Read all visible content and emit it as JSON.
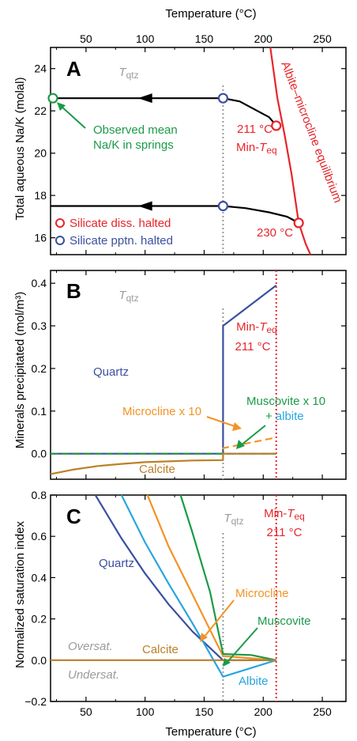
{
  "colors": {
    "black": "#000000",
    "red": "#e8252b",
    "blue": "#3a4fa0",
    "green": "#1a9a48",
    "orange": "#f39325",
    "cyan": "#29a6df",
    "brown": "#bd8027",
    "gray": "#9b9b9b"
  },
  "chart_data": [
    {
      "panel": "A",
      "type": "line",
      "xlabel": "Temperature (°C)",
      "x_axis_position": "top",
      "ylabel": "Total aqueous Na/K (molal)",
      "xlim": [
        20,
        270
      ],
      "ylim": [
        15.2,
        25
      ],
      "xticks": [
        50,
        100,
        150,
        200,
        250
      ],
      "yticks": [
        16,
        18,
        20,
        22,
        24
      ],
      "tqtz_x": 166,
      "tqtz_label": "T",
      "tqtz_sub": "qtz",
      "series": [
        {
          "name": "Albite–microcline equilibrium",
          "color": "red",
          "x": [
            206,
            212,
            218,
            224,
            230,
            236,
            240
          ],
          "y": [
            25,
            22.6,
            20.9,
            19.0,
            16.7,
            15.7,
            15.2
          ]
        },
        {
          "color": "black",
          "x": [
            21,
            166,
            180,
            195,
            205,
            211
          ],
          "y": [
            22.6,
            22.6,
            22.45,
            22.0,
            21.7,
            21.3
          ]
        },
        {
          "color": "black",
          "x": [
            20,
            166,
            185,
            205,
            220,
            230
          ],
          "y": [
            17.5,
            17.5,
            17.4,
            17.2,
            17.0,
            16.7
          ]
        }
      ],
      "markers": [
        {
          "x": 22,
          "y": 22.6,
          "color": "green"
        },
        {
          "x": 166,
          "y": 22.6,
          "color": "blue"
        },
        {
          "x": 211,
          "y": 21.3,
          "color": "red"
        },
        {
          "x": 166,
          "y": 17.5,
          "color": "blue"
        },
        {
          "x": 230,
          "y": 16.7,
          "color": "red"
        }
      ],
      "labels": {
        "letter": "A",
        "equilibrium": "Albite–microcline equilibrium",
        "observed_line1": "Observed mean",
        "observed_line2": "Na/K in springs",
        "t211": "211 °C",
        "min_teq_prefix": "Min-",
        "min_teq_t": "T",
        "min_teq_sub": "eq",
        "t230": "230 °C",
        "legend_red": "Silicate diss. halted",
        "legend_blue": "Silicate pptn. halted"
      }
    },
    {
      "panel": "B",
      "type": "line",
      "ylabel": "Minerals precipitated (mol/m³)",
      "xlim": [
        20,
        270
      ],
      "ylim": [
        -0.06,
        0.43
      ],
      "yticks": [
        0.0,
        0.1,
        0.2,
        0.3,
        0.4
      ],
      "ytick_labels": [
        "0.0",
        "0.1",
        "0.2",
        "0.3",
        "0.4"
      ],
      "tqtz_x": 166,
      "min_teq_x": 211,
      "series": [
        {
          "name": "Quartz",
          "color": "blue",
          "x": [
            20,
            166,
            166,
            211
          ],
          "y": [
            0,
            0,
            0.3,
            0.395
          ]
        },
        {
          "name": "Microcline x 10",
          "color": "orange",
          "x": [
            20,
            166,
            166,
            211
          ],
          "y": [
            0,
            0,
            0.013,
            0.038
          ],
          "dashed": true
        },
        {
          "name": "Muscovite x 10",
          "color": "green",
          "x": [
            20,
            166,
            211
          ],
          "y": [
            0,
            0,
            0
          ],
          "dashed": true
        },
        {
          "name": "albite",
          "color": "cyan",
          "x": [
            166,
            211
          ],
          "y": [
            0,
            0
          ]
        },
        {
          "name": "Calcite",
          "color": "brown",
          "x": [
            20,
            40,
            60,
            80,
            100,
            120,
            140,
            166,
            166,
            211
          ],
          "y": [
            -0.048,
            -0.037,
            -0.029,
            -0.024,
            -0.02,
            -0.018,
            -0.016,
            -0.015,
            0,
            0
          ]
        }
      ],
      "labels": {
        "letter": "B",
        "tqtz": "T",
        "tqtz_sub": "qtz",
        "min_teq_prefix": "Min-",
        "min_teq_t": "T",
        "min_teq_sub": "eq",
        "t211": "211 °C",
        "quartz": "Quartz",
        "microcline": "Microcline x 10",
        "muscovite": "Muscovite x 10",
        "plus": "+",
        "albite": "albite",
        "calcite": "Calcite"
      }
    },
    {
      "panel": "C",
      "type": "line",
      "xlabel": "Temperature (°C)",
      "ylabel": "Normalized saturation index",
      "xlim": [
        20,
        270
      ],
      "ylim": [
        -0.2,
        0.8
      ],
      "xticks": [
        50,
        100,
        150,
        200,
        250
      ],
      "yticks": [
        -0.2,
        0.0,
        0.2,
        0.4,
        0.6,
        0.8
      ],
      "ytick_labels": [
        "−0.2",
        "0.0",
        "0.2",
        "0.4",
        "0.6",
        "0.8"
      ],
      "tqtz_x": 166,
      "min_teq_x": 211,
      "series": [
        {
          "name": "Quartz",
          "color": "blue",
          "x": [
            58,
            80,
            100,
            120,
            140,
            166,
            211
          ],
          "y": [
            0.8,
            0.59,
            0.42,
            0.27,
            0.14,
            0,
            0
          ]
        },
        {
          "name": "Albite",
          "color": "cyan",
          "x": [
            80,
            100,
            120,
            140,
            166,
            211
          ],
          "y": [
            0.8,
            0.57,
            0.37,
            0.18,
            -0.08,
            0
          ]
        },
        {
          "name": "Microcline",
          "color": "orange",
          "x": [
            102,
            120,
            140,
            166,
            211
          ],
          "y": [
            0.8,
            0.55,
            0.32,
            0.02,
            0
          ]
        },
        {
          "name": "Muscovite",
          "color": "green",
          "x": [
            130,
            140,
            155,
            166,
            190,
            211
          ],
          "y": [
            0.8,
            0.62,
            0.33,
            0.03,
            0.025,
            0
          ]
        },
        {
          "name": "Calcite",
          "color": "brown",
          "x": [
            20,
            166,
            211
          ],
          "y": [
            0,
            0,
            0
          ]
        }
      ],
      "labels": {
        "letter": "C",
        "tqtz": "T",
        "tqtz_sub": "qtz",
        "min_teq_prefix": "Min-",
        "min_teq_t": "T",
        "min_teq_sub": "eq",
        "t211": "211 °C",
        "quartz": "Quartz",
        "microcline": "Microcline",
        "muscovite": "Muscovite",
        "calcite": "Calcite",
        "albite": "Albite",
        "oversat": "Oversat.",
        "undersat": "Undersat."
      }
    }
  ]
}
